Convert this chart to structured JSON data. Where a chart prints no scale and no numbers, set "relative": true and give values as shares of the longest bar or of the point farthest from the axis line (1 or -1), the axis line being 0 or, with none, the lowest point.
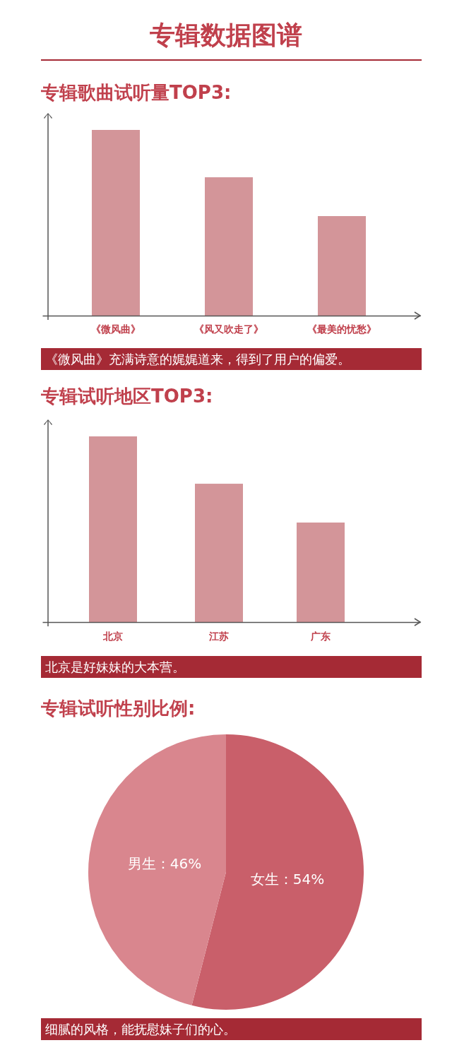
{
  "chart_data": [
    {
      "type": "bar",
      "title": "专辑数据图谱",
      "subtitle": "专辑歌曲试听量TOP3:",
      "categories": [
        "《微风曲》",
        "《风又吹走了》",
        "《最美的忧愁》"
      ],
      "values": [
        1,
        0.745,
        0.536
      ],
      "color": "#d39599",
      "relative": true,
      "annotations": [
        "《微风曲》充满诗意的娓娓道来，得到了用户的偏爱。"
      ]
    },
    {
      "type": "bar",
      "title": "专辑试听地区TOP3:",
      "categories": [
        "北京",
        "江苏",
        "广东"
      ],
      "values": [
        1,
        0.745,
        0.536
      ],
      "color": "#d39599",
      "relative": true,
      "annotations": [
        "北京是好妹妹的大本营。"
      ]
    },
    {
      "type": "pie",
      "title": "专辑试听性别比例:",
      "categories": [
        "女生",
        "男生"
      ],
      "values": [
        54,
        46
      ],
      "colors": [
        "#c95f6a",
        "#d9868e"
      ],
      "value_labels": [
        "54%",
        "46%"
      ],
      "annotations": [
        "细腻的风格，能抚慰妹子们的心。"
      ]
    }
  ]
}
